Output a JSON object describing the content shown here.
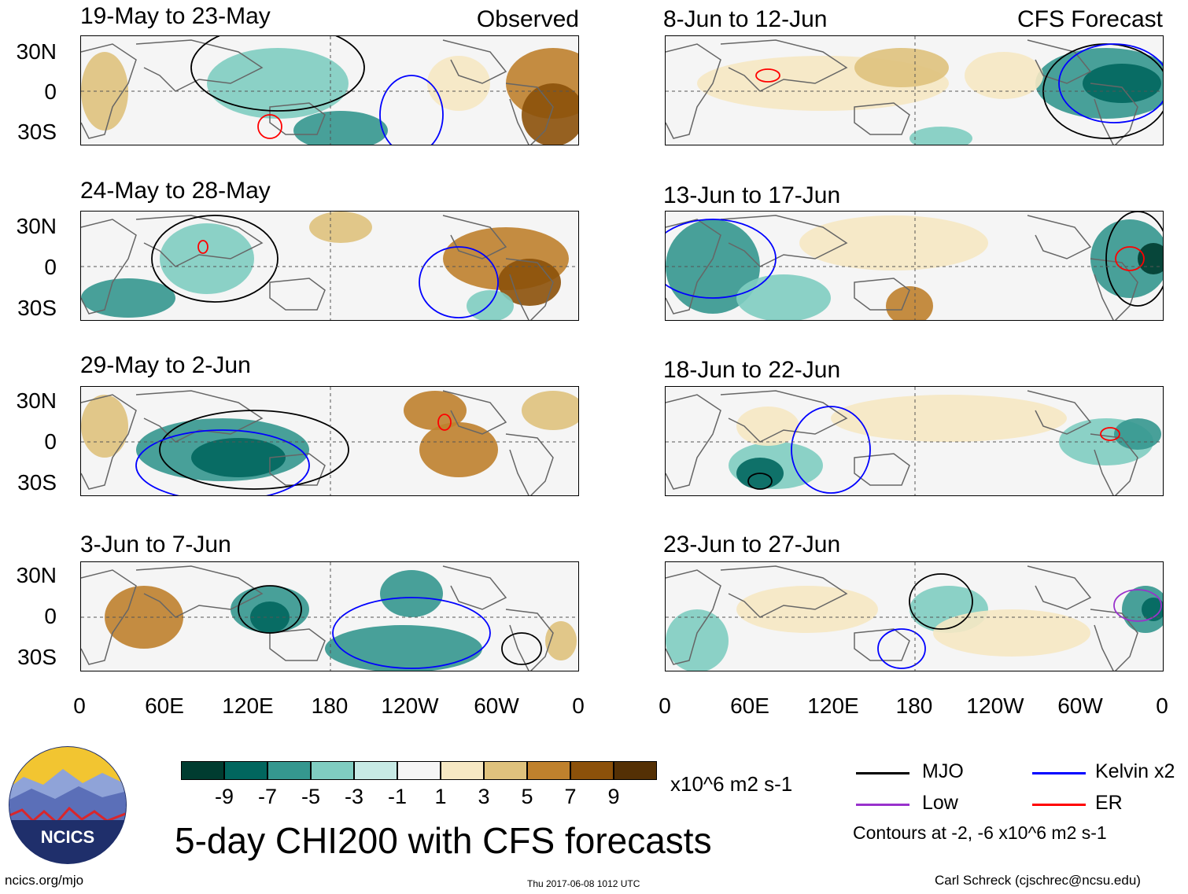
{
  "chart_data": {
    "type": "heatmap",
    "title": "5-day CHI200 with CFS forecasts",
    "left_column_header": "Observed",
    "right_column_header": "CFS Forecast",
    "panels_observed": [
      {
        "label": "19-May to 23-May"
      },
      {
        "label": "24-May to 28-May"
      },
      {
        "label": "29-May to 2-Jun"
      },
      {
        "label": "3-Jun to 7-Jun"
      }
    ],
    "panels_forecast": [
      {
        "label": "8-Jun to 12-Jun"
      },
      {
        "label": "13-Jun to 17-Jun"
      },
      {
        "label": "18-Jun to 22-Jun"
      },
      {
        "label": "23-Jun to 27-Jun"
      }
    ],
    "lat_ticks": [
      "30N",
      "0",
      "30S"
    ],
    "lon_ticks": [
      "0",
      "60E",
      "120E",
      "180",
      "120W",
      "60W",
      "0"
    ],
    "colorbar": {
      "levels": [
        "-9",
        "-7",
        "-5",
        "-3",
        "-1",
        "1",
        "3",
        "5",
        "7",
        "9"
      ],
      "colors": [
        "#003c30",
        "#01665e",
        "#35978f",
        "#80cdc1",
        "#c7eae5",
        "#f5f5f5",
        "#f6e8c3",
        "#dfc27d",
        "#bf812d",
        "#8c510a",
        "#543005"
      ],
      "units": "x10^6 m2 s-1"
    },
    "contour_legend": [
      {
        "label": "MJO",
        "color": "#000000"
      },
      {
        "label": "Kelvin x2",
        "color": "#0000ff"
      },
      {
        "label": "Low",
        "color": "#9932cc"
      },
      {
        "label": "ER",
        "color": "#ff0000"
      }
    ],
    "contour_note": "Contours at -2, -6 x10^6 m2 s-1"
  },
  "logo": {
    "text": "NCICS"
  },
  "footer": {
    "left": "ncics.org/mjo",
    "center": "Thu 2017-06-08 1012 UTC",
    "right": "Carl Schreck (cjschrec@ncsu.edu)"
  }
}
